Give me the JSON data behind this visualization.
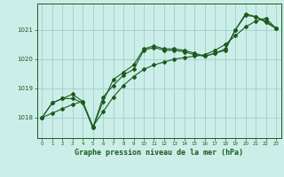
{
  "title": "Graphe pression niveau de la mer (hPa)",
  "bg_color": "#cceee8",
  "grid_color": "#9ecfca",
  "line_color": "#1a5c1a",
  "xlim": [
    -0.5,
    23.5
  ],
  "ylim": [
    1017.3,
    1021.9
  ],
  "yticks": [
    1018,
    1019,
    1020,
    1021
  ],
  "xticks": [
    0,
    1,
    2,
    3,
    4,
    5,
    6,
    7,
    8,
    9,
    10,
    11,
    12,
    13,
    14,
    15,
    16,
    17,
    18,
    19,
    20,
    21,
    22,
    23
  ],
  "series1": [
    [
      0,
      1018.0
    ],
    [
      1,
      1018.5
    ],
    [
      2,
      1018.65
    ],
    [
      3,
      1018.8
    ],
    [
      4,
      1018.55
    ],
    [
      5,
      1017.65
    ],
    [
      6,
      1018.55
    ],
    [
      7,
      1019.3
    ],
    [
      8,
      1019.55
    ],
    [
      9,
      1019.8
    ],
    [
      10,
      1020.35
    ],
    [
      11,
      1020.45
    ],
    [
      12,
      1020.35
    ],
    [
      13,
      1020.35
    ],
    [
      14,
      1020.3
    ],
    [
      15,
      1020.2
    ],
    [
      16,
      1020.1
    ],
    [
      17,
      1020.2
    ],
    [
      18,
      1020.35
    ],
    [
      19,
      1021.0
    ],
    [
      20,
      1021.55
    ],
    [
      21,
      1021.45
    ],
    [
      22,
      1021.3
    ],
    [
      23,
      1021.05
    ]
  ],
  "series2": [
    [
      0,
      1018.0
    ],
    [
      1,
      1018.5
    ],
    [
      2,
      1018.65
    ],
    [
      3,
      1018.65
    ],
    [
      4,
      1018.5
    ],
    [
      5,
      1017.65
    ],
    [
      6,
      1018.7
    ],
    [
      7,
      1019.1
    ],
    [
      8,
      1019.45
    ],
    [
      9,
      1019.65
    ],
    [
      10,
      1020.3
    ],
    [
      11,
      1020.4
    ],
    [
      12,
      1020.3
    ],
    [
      13,
      1020.3
    ],
    [
      14,
      1020.25
    ],
    [
      15,
      1020.15
    ],
    [
      16,
      1020.1
    ],
    [
      17,
      1020.2
    ],
    [
      18,
      1020.3
    ],
    [
      19,
      1021.0
    ],
    [
      20,
      1021.5
    ],
    [
      21,
      1021.45
    ],
    [
      22,
      1021.25
    ],
    [
      23,
      1021.05
    ]
  ],
  "series3": [
    [
      0,
      1018.0
    ],
    [
      1,
      1018.15
    ],
    [
      2,
      1018.3
    ],
    [
      3,
      1018.45
    ],
    [
      4,
      1018.55
    ],
    [
      5,
      1017.7
    ],
    [
      6,
      1018.2
    ],
    [
      7,
      1018.7
    ],
    [
      8,
      1019.1
    ],
    [
      9,
      1019.4
    ],
    [
      10,
      1019.65
    ],
    [
      11,
      1019.8
    ],
    [
      12,
      1019.9
    ],
    [
      13,
      1020.0
    ],
    [
      14,
      1020.05
    ],
    [
      15,
      1020.1
    ],
    [
      16,
      1020.15
    ],
    [
      17,
      1020.3
    ],
    [
      18,
      1020.5
    ],
    [
      19,
      1020.8
    ],
    [
      20,
      1021.1
    ],
    [
      21,
      1021.3
    ],
    [
      22,
      1021.4
    ],
    [
      23,
      1021.05
    ]
  ]
}
